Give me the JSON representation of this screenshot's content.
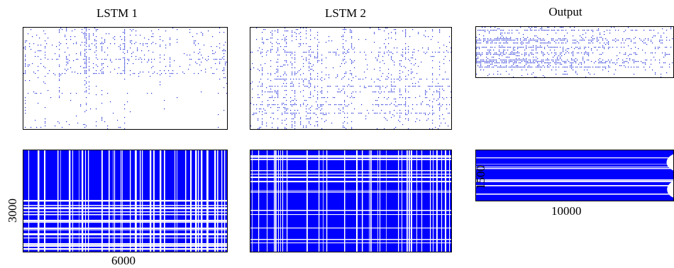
{
  "columns": [
    {
      "title": "LSTM 1",
      "dim_x": "6000",
      "dim_y": "3000"
    },
    {
      "title": "LSTM 2"
    },
    {
      "title": "Output",
      "dim_x": "10000",
      "dim_y": "1500"
    }
  ],
  "colors": {
    "sparse": "#1f2fd6",
    "mask": "#0000ff",
    "frame": "#000000"
  },
  "panels": [
    {
      "id": "lstm1-sparse",
      "kind": "scatter"
    },
    {
      "id": "lstm2-sparse",
      "kind": "scatter"
    },
    {
      "id": "output-sparse",
      "kind": "scatter"
    },
    {
      "id": "lstm1-mask",
      "kind": "stripes"
    },
    {
      "id": "lstm2-mask",
      "kind": "stripes"
    },
    {
      "id": "output-mask",
      "kind": "stripes"
    }
  ]
}
